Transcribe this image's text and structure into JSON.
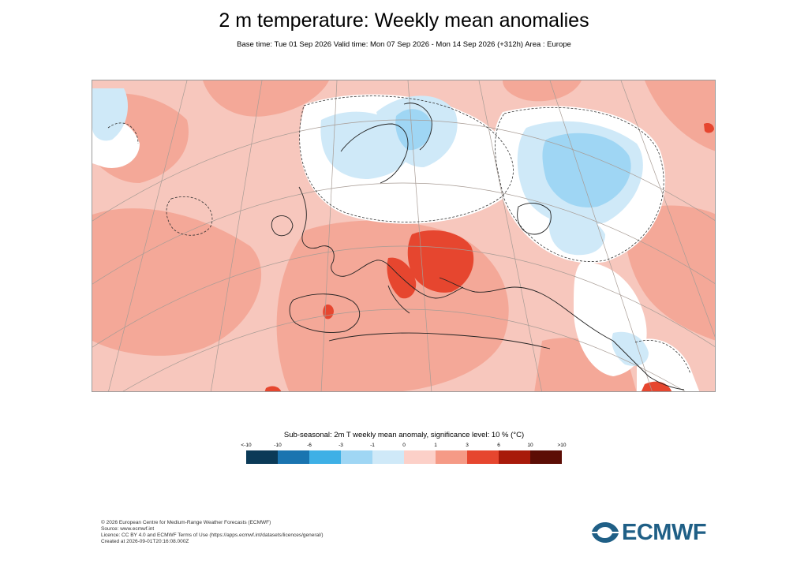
{
  "header": {
    "title": "2 m temperature: Weekly mean anomalies",
    "subtitle": "Base time: Tue 01 Sep 2026 Valid time: Mon 07 Sep 2026 - Mon 14 Sep 2026 (+312h) Area : Europe"
  },
  "legend": {
    "title": "Sub-seasonal: 2m T weekly mean anomaly, significance level: 10 % (°C)",
    "ticks": [
      "<-10",
      "-10",
      "-6",
      "-3",
      "-1",
      "0",
      "1",
      "3",
      "6",
      "10",
      ">10"
    ],
    "colors": [
      "#0b3a57",
      "#1a74b0",
      "#3eb0e6",
      "#9fd6f4",
      "#cfe9f8",
      "#fcd0c8",
      "#f59a86",
      "#e6462f",
      "#a81a0a",
      "#5c0d05"
    ]
  },
  "footer": {
    "lines": [
      "© 2026 European Centre for Medium-Range Weather Forecasts (ECMWF)",
      "Source: www.ecmwf.int",
      "Licence: CC BY 4.0 and ECMWF Terms of Use (https://apps.ecmwf.int/datasets/licences/general/)",
      "Created at 2026-09-01T20:16:08.000Z"
    ]
  },
  "logo": {
    "text": "ECMWF",
    "color": "#1f5f86"
  },
  "map": {
    "area": "Europe",
    "background_color": "#f7c7bd"
  }
}
